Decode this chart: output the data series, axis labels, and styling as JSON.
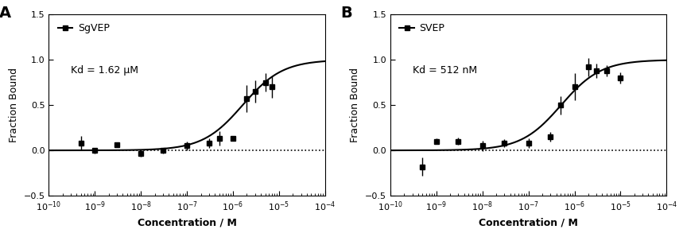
{
  "panel_A": {
    "label": "A",
    "legend_label": "SgVEP",
    "kd_text": "Kd = 1.62 μM",
    "kd_value": 1.62e-06,
    "x_data": [
      5e-10,
      1e-09,
      3e-09,
      1e-08,
      3e-08,
      1e-07,
      3e-07,
      5e-07,
      1e-06,
      2e-06,
      3e-06,
      5e-06,
      7e-06
    ],
    "y_data": [
      0.08,
      0.0,
      0.06,
      -0.03,
      0.0,
      0.05,
      0.08,
      0.13,
      0.13,
      0.57,
      0.65,
      0.75,
      0.7
    ],
    "y_err": [
      0.08,
      0.03,
      0.02,
      0.04,
      0.03,
      0.05,
      0.05,
      0.08,
      0.0,
      0.15,
      0.12,
      0.1,
      0.12
    ]
  },
  "panel_B": {
    "label": "B",
    "legend_label": "SVEP",
    "kd_text": "Kd = 512 nM",
    "kd_value": 5.12e-07,
    "x_data": [
      5e-10,
      1e-09,
      3e-09,
      1e-08,
      3e-08,
      1e-07,
      3e-07,
      5e-07,
      1e-06,
      2e-06,
      3e-06,
      5e-06,
      1e-05
    ],
    "y_data": [
      -0.18,
      0.1,
      0.1,
      0.05,
      0.08,
      0.08,
      0.15,
      0.5,
      0.7,
      0.92,
      0.88,
      0.88,
      0.8
    ],
    "y_err": [
      0.1,
      0.03,
      0.04,
      0.06,
      0.04,
      0.05,
      0.05,
      0.1,
      0.15,
      0.1,
      0.08,
      0.06,
      0.06
    ]
  },
  "xlim": [
    1e-10,
    0.0001
  ],
  "ylim": [
    -0.5,
    1.5
  ],
  "yticks": [
    -0.5,
    0.0,
    0.5,
    1.0,
    1.5
  ],
  "xlabel": "Concentration / M",
  "ylabel": "Fraction Bound",
  "background_color": "#ffffff",
  "line_color": "#000000",
  "marker_color": "#000000",
  "dotted_line_color": "#000000"
}
